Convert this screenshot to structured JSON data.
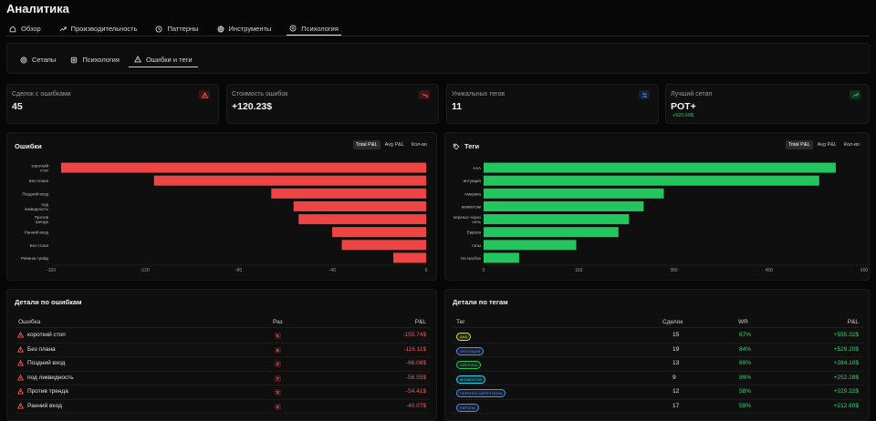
{
  "page": {
    "title": "Аналитика"
  },
  "tabs": [
    {
      "label": "Обзор",
      "icon": "home-icon"
    },
    {
      "label": "Производительность",
      "icon": "trending-up-icon"
    },
    {
      "label": "Паттерны",
      "icon": "clock-icon"
    },
    {
      "label": "Инструменты",
      "icon": "globe-icon"
    },
    {
      "label": "Психология",
      "icon": "brain-icon"
    }
  ],
  "subtabs": [
    {
      "label": "Сетапы",
      "icon": "target-icon"
    },
    {
      "label": "Психология",
      "icon": "brain-icon"
    },
    {
      "label": "Ошибки и теги",
      "icon": "warning-icon"
    }
  ],
  "stats": [
    {
      "label": "Сделок с ошибками",
      "value": "45",
      "sub": "",
      "icon": "warning-icon",
      "badge_color": "#3a1416",
      "icon_color": "#f0565a"
    },
    {
      "label": "Стоимость ошибок",
      "value": "+120.23$",
      "sub": "",
      "icon": "trending-down-icon",
      "badge_color": "#3a1416",
      "icon_color": "#f0565a"
    },
    {
      "label": "Уникальных тегов",
      "value": "11",
      "sub": "",
      "icon": "tags-icon",
      "badge_color": "#13213b",
      "icon_color": "#4f8ef7"
    },
    {
      "label": "Лучший сетап",
      "value": "POT+",
      "sub": "+520.60$",
      "icon": "trending-up-icon",
      "badge_color": "#11301d",
      "icon_color": "#36c76a"
    }
  ],
  "errors_chart": {
    "title": "Ошибки",
    "toggle": [
      "Total P&L",
      "Avg P&L",
      "Кол-во"
    ],
    "active_toggle": "Total P&L",
    "chart_data": {
      "type": "bar",
      "orientation": "horizontal",
      "categories": [
        "короткий стоп",
        "Без плана",
        "Поздний вход",
        "под ликвидность",
        "Против тренда",
        "Ранний вход",
        "Без стопа",
        "Реванш-трейд"
      ],
      "values": [
        -155.74,
        -116.11,
        -66.08,
        -56.55,
        -54.41,
        -40.07,
        -36.0,
        -14.0
      ],
      "xlim": [
        -160,
        0
      ],
      "xticks": [
        -160,
        -120,
        -80,
        -40,
        0
      ],
      "color": "#ef4444",
      "grid": false
    }
  },
  "tags_chart": {
    "title": "Теги",
    "toggle": [
      "Total P&L",
      "Avg P&L",
      "Кол-во"
    ],
    "active_toggle": "Total P&L",
    "chart_data": {
      "type": "bar",
      "orientation": "horizontal",
      "categories": [
        "AAA",
        "интуиция",
        "Америка",
        "моментум",
        "перенос через ночь",
        "Европа",
        "гэпы",
        "На пробое"
      ],
      "values": [
        555.32,
        529.2,
        284.1,
        252.28,
        229.22,
        212.6,
        146.0,
        56.0
      ],
      "xlim": [
        0,
        600
      ],
      "xticks": [
        0,
        150,
        300,
        450,
        600
      ],
      "color": "#22c55e",
      "grid": false
    }
  },
  "errors_table": {
    "title": "Детали по ошибкам",
    "headers": [
      "Ошибка",
      "Раз",
      "P&L"
    ],
    "rows": [
      {
        "name": "короткий стоп",
        "count": "5",
        "pnl": "-155.74$"
      },
      {
        "name": "Без плана",
        "count": "8",
        "pnl": "-116.11$"
      },
      {
        "name": "Поздний вход",
        "count": "2",
        "pnl": "-66.08$"
      },
      {
        "name": "под ликвидность",
        "count": "7",
        "pnl": "-56.55$"
      },
      {
        "name": "Против тренда",
        "count": "3",
        "pnl": "-54.41$"
      },
      {
        "name": "Ранний вход",
        "count": "2",
        "pnl": "-40.07$"
      }
    ]
  },
  "tags_table": {
    "title": "Детали по тегам",
    "headers": [
      "Тег",
      "Сделок",
      "WR",
      "P&L"
    ],
    "rows": [
      {
        "tag": "AAA",
        "color": "#d6dc3b",
        "trades": "15",
        "wr": "87%",
        "pnl": "+555.32$"
      },
      {
        "tag": "ИНТУИЦИЯ",
        "color": "#4f8ef7",
        "trades": "19",
        "wr": "84%",
        "pnl": "+529.20$"
      },
      {
        "tag": "АМЕРИКА",
        "color": "#22c55e",
        "trades": "13",
        "wr": "69%",
        "pnl": "+284.10$"
      },
      {
        "tag": "МОМЕНТУМ",
        "color": "#22d3ee",
        "trades": "9",
        "wr": "89%",
        "pnl": "+252.28$"
      },
      {
        "tag": "ПЕРЕНОС ЧЕРЕЗ НОЧЬ",
        "color": "#4f8ef7",
        "trades": "12",
        "wr": "58%",
        "pnl": "+229.22$"
      },
      {
        "tag": "ЕВРОПА",
        "color": "#4f8ef7",
        "trades": "17",
        "wr": "59%",
        "pnl": "+212.60$"
      }
    ]
  }
}
